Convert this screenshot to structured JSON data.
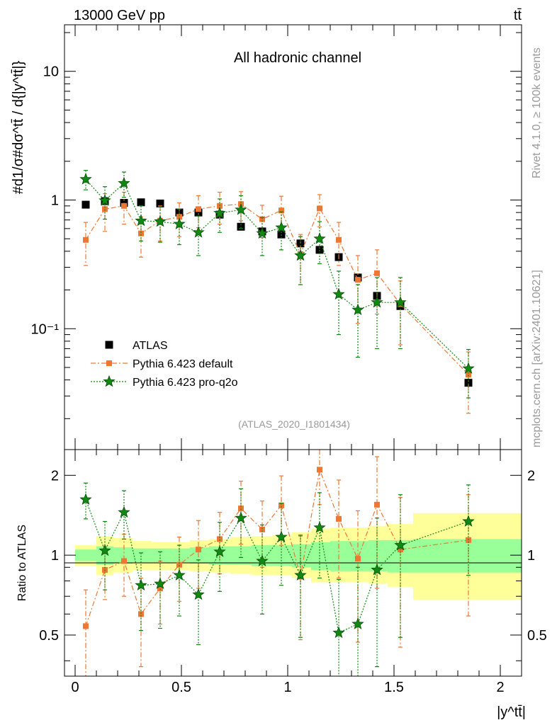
{
  "header": {
    "left": "13000 GeV pp",
    "right": "tt̄"
  },
  "side_labels": {
    "rivet": "Rivet 4.1.0, ≥ 100k events",
    "mcplots": "mcplots.cern.ch [arXiv:2401.10621]"
  },
  "main_plot": {
    "title": "All hadronic channel",
    "ylabel": "#d1/σ#dσ^tt̄ / d{|y^tt̄|}",
    "reference": "(ATLAS_2020_I1801434)",
    "yticks": [
      {
        "v": 0.1,
        "label": "10⁻¹"
      },
      {
        "v": 1,
        "label": "1"
      },
      {
        "v": 10,
        "label": "10"
      }
    ]
  },
  "ratio_plot": {
    "ylabel": "Ratio to ATLAS",
    "yticks": [
      {
        "v": 0.5,
        "label": "0.5"
      },
      {
        "v": 1,
        "label": "1"
      },
      {
        "v": 2,
        "label": "2"
      }
    ]
  },
  "x_axis": {
    "label": "|y^tt̄|",
    "ticks": [
      {
        "v": 0,
        "label": "0"
      },
      {
        "v": 0.5,
        "label": "0.5"
      },
      {
        "v": 1,
        "label": "1"
      },
      {
        "v": 1.5,
        "label": "1.5"
      },
      {
        "v": 2,
        "label": "2"
      }
    ]
  },
  "legend": [
    {
      "name": "ATLAS",
      "color": "#000000",
      "marker": "square"
    },
    {
      "name": "Pythia 6.423 default",
      "color": "#ee7733",
      "marker": "square"
    },
    {
      "name": "Pythia 6.423 pro-q2o",
      "color": "#118811",
      "marker": "star"
    }
  ],
  "chart_data": {
    "type": "scatter",
    "x": [
      0.05,
      0.14,
      0.23,
      0.31,
      0.4,
      0.49,
      0.58,
      0.68,
      0.78,
      0.88,
      0.97,
      1.06,
      1.15,
      1.24,
      1.33,
      1.42,
      1.53,
      1.85
    ],
    "xlim": [
      -0.05,
      2.1
    ],
    "ylim": [
      0.0115,
      23
    ],
    "ratio_ylim": [
      0.35,
      2.5
    ],
    "ratio_bands": {
      "edges": [
        0,
        0.1,
        0.18,
        0.27,
        0.36,
        0.45,
        0.54,
        0.63,
        0.73,
        0.83,
        0.93,
        1.02,
        1.11,
        1.2,
        1.29,
        1.38,
        1.47,
        1.59,
        2.1
      ],
      "inner": [
        [
          0.95,
          1.05
        ],
        [
          0.92,
          1.08
        ],
        [
          0.93,
          1.07
        ],
        [
          0.94,
          1.06
        ],
        [
          0.94,
          1.06
        ],
        [
          0.94,
          1.06
        ],
        [
          0.93,
          1.07
        ],
        [
          0.92,
          1.08
        ],
        [
          0.92,
          1.08
        ],
        [
          0.91,
          1.09
        ],
        [
          0.91,
          1.09
        ],
        [
          0.9,
          1.1
        ],
        [
          0.88,
          1.12
        ],
        [
          0.87,
          1.13
        ],
        [
          0.87,
          1.13
        ],
        [
          0.87,
          1.14
        ],
        [
          0.86,
          1.14
        ],
        [
          0.86,
          1.15
        ]
      ],
      "outer": [
        [
          0.91,
          1.09
        ],
        [
          0.84,
          1.18
        ],
        [
          0.86,
          1.16
        ],
        [
          0.88,
          1.13
        ],
        [
          0.88,
          1.12
        ],
        [
          0.88,
          1.12
        ],
        [
          0.87,
          1.14
        ],
        [
          0.86,
          1.15
        ],
        [
          0.85,
          1.17
        ],
        [
          0.84,
          1.18
        ],
        [
          0.84,
          1.19
        ],
        [
          0.82,
          1.22
        ],
        [
          0.79,
          1.26
        ],
        [
          0.79,
          1.27
        ],
        [
          0.79,
          1.27
        ],
        [
          0.78,
          1.29
        ],
        [
          0.76,
          1.31
        ],
        [
          0.68,
          1.44
        ]
      ]
    },
    "series": [
      {
        "name": "ATLAS",
        "values": [
          0.92,
          0.98,
          0.95,
          0.96,
          0.94,
          0.8,
          0.8,
          0.77,
          0.62,
          0.57,
          0.54,
          0.46,
          0.41,
          0.36,
          0.25,
          0.18,
          0.15,
          0.038
        ]
      },
      {
        "name": "Pythia 6.423 default",
        "values": [
          0.49,
          0.85,
          0.9,
          0.55,
          0.69,
          0.74,
          0.85,
          0.9,
          0.93,
          0.71,
          0.83,
          0.38,
          0.86,
          0.49,
          0.24,
          0.27,
          0.155,
          0.044
        ],
        "err_low": [
          0.18,
          0.28,
          0.25,
          0.19,
          0.21,
          0.22,
          0.24,
          0.25,
          0.24,
          0.2,
          0.24,
          0.16,
          0.24,
          0.18,
          0.13,
          0.14,
          0.08,
          0.022
        ],
        "err_high": [
          0.18,
          0.27,
          0.25,
          0.19,
          0.21,
          0.21,
          0.23,
          0.25,
          0.23,
          0.2,
          0.24,
          0.16,
          0.24,
          0.18,
          0.13,
          0.14,
          0.08,
          0.022
        ],
        "ratio": [
          0.54,
          0.88,
          0.95,
          0.6,
          0.75,
          0.92,
          1.05,
          1.15,
          1.5,
          1.25,
          1.54,
          0.83,
          2.1,
          1.37,
          0.97,
          1.55,
          1.05,
          1.14
        ],
        "ratio_err_low": [
          0.2,
          0.2,
          0.25,
          0.22,
          0.2,
          0.25,
          0.3,
          0.3,
          0.4,
          0.35,
          0.45,
          0.35,
          0.55,
          0.55,
          0.5,
          0.8,
          0.6,
          0.55
        ],
        "ratio_err_high": [
          0.2,
          0.2,
          0.25,
          0.22,
          0.2,
          0.25,
          0.3,
          0.3,
          0.4,
          0.35,
          0.45,
          0.35,
          0.55,
          0.55,
          0.5,
          0.8,
          0.6,
          0.55
        ]
      },
      {
        "name": "Pythia 6.423 pro-q2o",
        "values": [
          1.45,
          0.99,
          1.35,
          0.69,
          0.68,
          0.65,
          0.56,
          0.79,
          0.84,
          0.55,
          0.61,
          0.37,
          0.5,
          0.185,
          0.14,
          0.16,
          0.16,
          0.049
        ],
        "err_low": [
          0.25,
          0.28,
          0.3,
          0.21,
          0.21,
          0.2,
          0.19,
          0.23,
          0.24,
          0.18,
          0.2,
          0.15,
          0.18,
          0.095,
          0.08,
          0.09,
          0.09,
          0.02
        ],
        "err_high": [
          0.25,
          0.28,
          0.3,
          0.21,
          0.21,
          0.2,
          0.19,
          0.23,
          0.24,
          0.18,
          0.2,
          0.15,
          0.18,
          0.095,
          0.08,
          0.09,
          0.09,
          0.02
        ],
        "ratio": [
          1.62,
          1.04,
          1.45,
          0.77,
          0.78,
          0.84,
          0.71,
          1.03,
          1.38,
          0.95,
          1.17,
          0.84,
          1.27,
          0.51,
          0.55,
          0.88,
          1.09,
          1.34
        ],
        "ratio_err_low": [
          0.25,
          0.3,
          0.3,
          0.25,
          0.25,
          0.25,
          0.25,
          0.3,
          0.4,
          0.35,
          0.4,
          0.35,
          0.45,
          0.3,
          0.35,
          0.5,
          0.6,
          0.5
        ],
        "ratio_err_high": [
          0.25,
          0.3,
          0.3,
          0.25,
          0.25,
          0.25,
          0.25,
          0.3,
          0.4,
          0.35,
          0.4,
          0.35,
          0.45,
          0.3,
          0.35,
          0.5,
          0.6,
          0.5
        ]
      }
    ]
  }
}
